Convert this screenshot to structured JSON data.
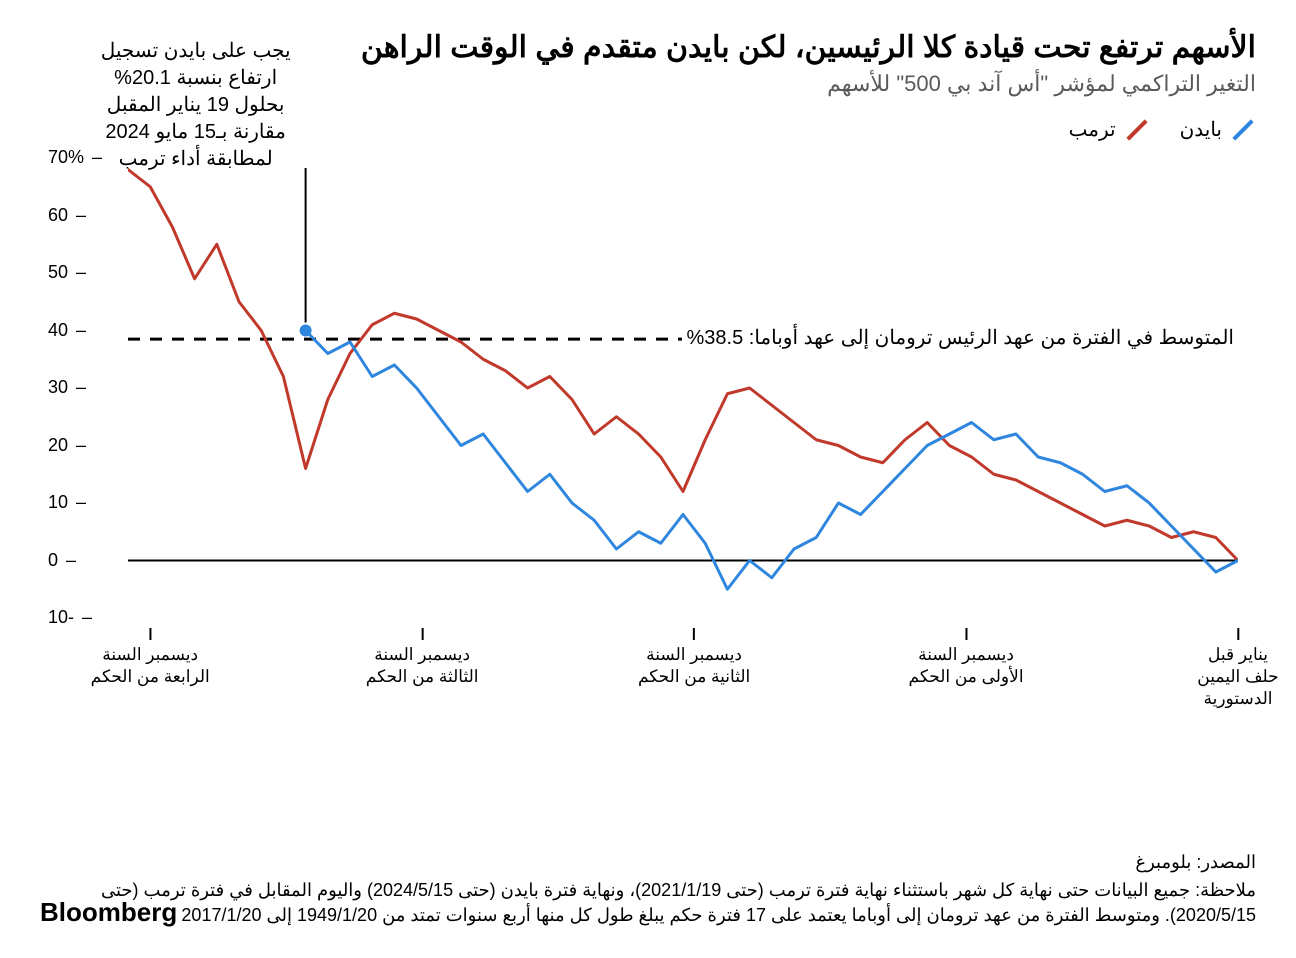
{
  "title": "الأسهم ترتفع تحت قيادة كلا الرئيسين، لكن بايدن متقدم في الوقت الراهن",
  "subtitle": "التغير التراكمي لمؤشر \"أس آند بي 500\" للأسهم",
  "legend": {
    "biden": {
      "label": "بايدن",
      "color": "#2e86de"
    },
    "trump": {
      "label": "ترمب",
      "color": "#c0392b"
    }
  },
  "chart": {
    "type": "line",
    "ylim": [
      -10,
      70
    ],
    "ytick_step": 10,
    "yticks": [
      -10,
      0,
      10,
      20,
      30,
      40,
      50,
      60,
      70
    ],
    "ytick_unit": "%",
    "background_color": "#ffffff",
    "axis_color": "#000000",
    "line_width": 3,
    "avg_line": {
      "value": 38.5,
      "label": "المتوسط في الفترة من عهد الرئيس ترومان إلى عهد أوباما: 38.5%",
      "style": "dashed",
      "color": "#000000"
    },
    "xticks": [
      {
        "pos": 0.0,
        "label": "يناير قبل\nحلف اليمين\nالدستورية"
      },
      {
        "pos": 0.245,
        "label": "ديسمبر السنة\nالأولى من الحكم"
      },
      {
        "pos": 0.49,
        "label": "ديسمبر السنة\nالثانية من الحكم"
      },
      {
        "pos": 0.735,
        "label": "ديسمبر السنة\nالثالثة من الحكم"
      },
      {
        "pos": 0.98,
        "label": "ديسمبر السنة\nالرابعة من الحكم"
      }
    ],
    "series": {
      "trump": {
        "color": "#c0392b",
        "data": [
          [
            0.0,
            0
          ],
          [
            0.02,
            4
          ],
          [
            0.04,
            5
          ],
          [
            0.06,
            4
          ],
          [
            0.08,
            6
          ],
          [
            0.1,
            7
          ],
          [
            0.12,
            6
          ],
          [
            0.14,
            8
          ],
          [
            0.16,
            10
          ],
          [
            0.18,
            12
          ],
          [
            0.2,
            14
          ],
          [
            0.22,
            15
          ],
          [
            0.24,
            18
          ],
          [
            0.26,
            20
          ],
          [
            0.28,
            24
          ],
          [
            0.3,
            21
          ],
          [
            0.32,
            17
          ],
          [
            0.34,
            18
          ],
          [
            0.36,
            20
          ],
          [
            0.38,
            21
          ],
          [
            0.4,
            24
          ],
          [
            0.42,
            27
          ],
          [
            0.44,
            30
          ],
          [
            0.46,
            29
          ],
          [
            0.48,
            21
          ],
          [
            0.5,
            12
          ],
          [
            0.52,
            18
          ],
          [
            0.54,
            22
          ],
          [
            0.56,
            25
          ],
          [
            0.58,
            22
          ],
          [
            0.6,
            28
          ],
          [
            0.62,
            32
          ],
          [
            0.64,
            30
          ],
          [
            0.66,
            33
          ],
          [
            0.68,
            35
          ],
          [
            0.7,
            38
          ],
          [
            0.72,
            40
          ],
          [
            0.74,
            42
          ],
          [
            0.76,
            43
          ],
          [
            0.78,
            41
          ],
          [
            0.8,
            36
          ],
          [
            0.82,
            28
          ],
          [
            0.84,
            16
          ],
          [
            0.86,
            32
          ],
          [
            0.88,
            40
          ],
          [
            0.9,
            45
          ],
          [
            0.92,
            55
          ],
          [
            0.94,
            49
          ],
          [
            0.96,
            58
          ],
          [
            0.98,
            65
          ],
          [
            1.0,
            68
          ]
        ]
      },
      "biden": {
        "color": "#2e86de",
        "data": [
          [
            0.0,
            0
          ],
          [
            0.02,
            -2
          ],
          [
            0.04,
            2
          ],
          [
            0.06,
            6
          ],
          [
            0.08,
            10
          ],
          [
            0.1,
            13
          ],
          [
            0.12,
            12
          ],
          [
            0.14,
            15
          ],
          [
            0.16,
            17
          ],
          [
            0.18,
            18
          ],
          [
            0.2,
            22
          ],
          [
            0.22,
            21
          ],
          [
            0.24,
            24
          ],
          [
            0.26,
            22
          ],
          [
            0.28,
            20
          ],
          [
            0.3,
            16
          ],
          [
            0.32,
            12
          ],
          [
            0.34,
            8
          ],
          [
            0.36,
            10
          ],
          [
            0.38,
            4
          ],
          [
            0.4,
            2
          ],
          [
            0.42,
            -3
          ],
          [
            0.44,
            0
          ],
          [
            0.46,
            -5
          ],
          [
            0.48,
            3
          ],
          [
            0.5,
            8
          ],
          [
            0.52,
            3
          ],
          [
            0.54,
            5
          ],
          [
            0.56,
            2
          ],
          [
            0.58,
            7
          ],
          [
            0.6,
            10
          ],
          [
            0.62,
            15
          ],
          [
            0.64,
            12
          ],
          [
            0.66,
            17
          ],
          [
            0.68,
            22
          ],
          [
            0.7,
            20
          ],
          [
            0.72,
            25
          ],
          [
            0.74,
            30
          ],
          [
            0.76,
            34
          ],
          [
            0.78,
            32
          ],
          [
            0.8,
            38
          ],
          [
            0.82,
            36
          ],
          [
            0.84,
            40
          ]
        ],
        "end_marker": {
          "x": 0.84,
          "y": 40,
          "radius": 6,
          "color": "#2e86de"
        }
      }
    },
    "annotation": {
      "text": "يجب على بايدن تسجيل\nارتفاع بنسبة 20.1%\nبحلول 19 يناير المقبل\nمقارنة بـ15 مايو 2024\nلمطابقة أداء ترمب",
      "pointer_x": 0.84,
      "pointer_y": 40,
      "fontsize": 20
    }
  },
  "footer": {
    "source": "المصدر: بلومبرغ",
    "note": "ملاحظة: جميع البيانات حتى نهاية كل شهر باستثناء نهاية فترة ترمب (حتى 2021/1/19)، ونهاية فترة بايدن (حتى 2024/5/15) واليوم المقابل في فترة ترمب (حتى 2020/5/15). ومتوسط الفترة من عهد ترومان إلى أوباما يعتمد على 17 فترة حكم يبلغ طول كل منها أربع سنوات تمتد من 1949/1/20 إلى 2017/1/20"
  },
  "brand": "Bloomberg"
}
